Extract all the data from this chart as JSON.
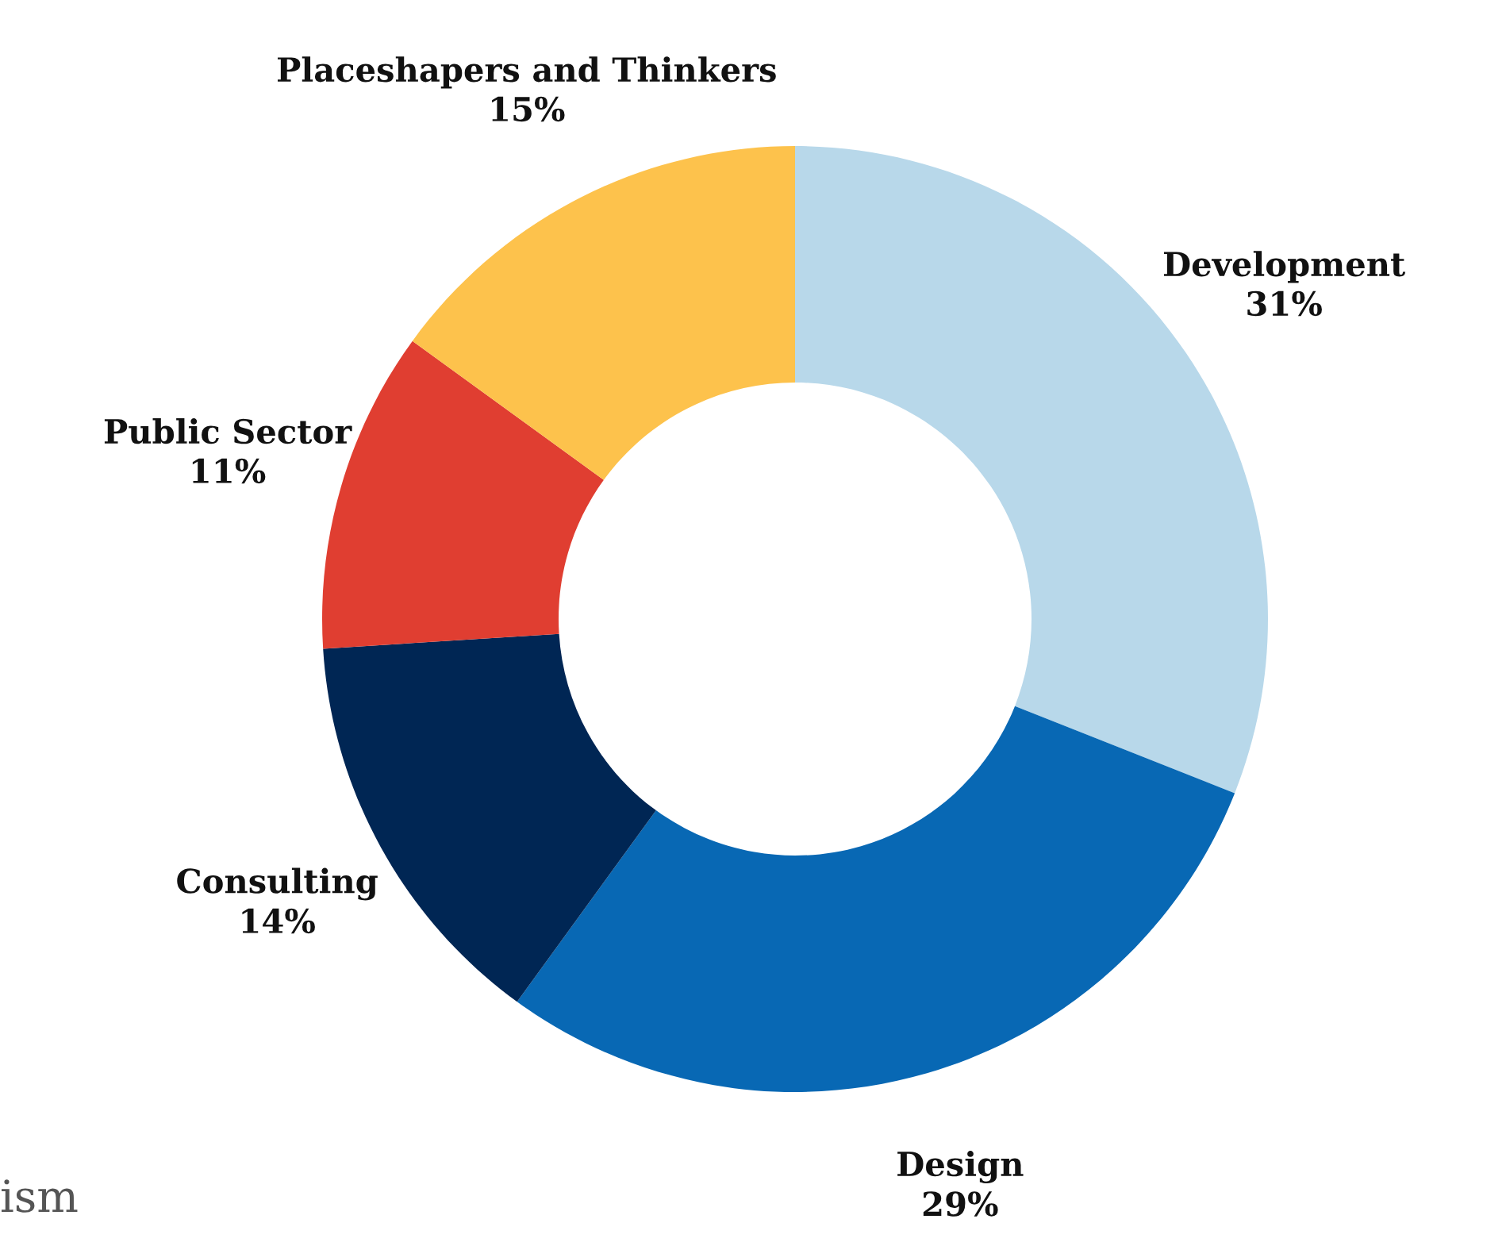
{
  "chart_data": {
    "type": "donut",
    "categories": [
      "Development",
      "Design",
      "Consulting",
      "Public Sector",
      "Placeshapers and Thinkers"
    ],
    "values": [
      31,
      29,
      14,
      11,
      15
    ],
    "colors": [
      "#b8d8ea",
      "#0868b4",
      "#002654",
      "#e03e31",
      "#fdc24c"
    ],
    "value_labels": [
      "31%",
      "29%",
      "14%",
      "11%",
      "15%"
    ],
    "annotations": [
      "ism"
    ]
  }
}
